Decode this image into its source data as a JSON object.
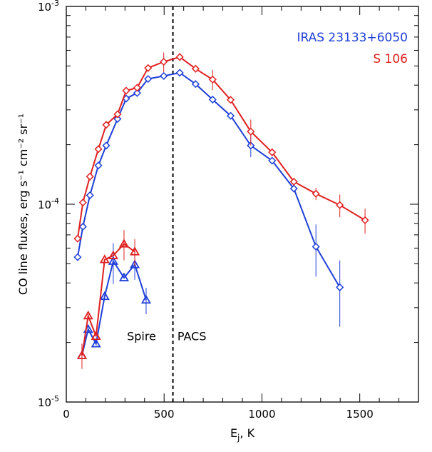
{
  "chart_data": {
    "type": "line",
    "xlabel": "E",
    "xlabel_sub": "j",
    "xlabel_unit": ", K",
    "ylabel": "CO line fluxes, erg s⁻¹ cm⁻² sr⁻¹",
    "xlim": [
      0,
      1800
    ],
    "ylim": [
      1e-05,
      0.001
    ],
    "yscale": "log",
    "x_ticks": [
      0,
      500,
      1000,
      1500
    ],
    "x_tick_labels": [
      "0",
      "500",
      "1000",
      "1500"
    ],
    "y_ticks": [
      {
        "value": 0.001,
        "base": "10",
        "exp": "-3"
      },
      {
        "value": 0.0001,
        "base": "10",
        "exp": "-4"
      },
      {
        "value": 1e-05,
        "base": "10",
        "exp": "-5"
      }
    ],
    "legend_position": "top-right",
    "divider_x": 545,
    "annotations": [
      {
        "text": "Spire",
        "x": 310,
        "y": 2.05e-05
      },
      {
        "text": "PACS",
        "x": 568,
        "y": 2.05e-05
      }
    ],
    "series": [
      {
        "name": "IRAS 23133+6050",
        "color": "#1f3fd8",
        "marker": "diamond",
        "x": [
          58,
          85,
          121,
          164,
          204,
          262,
          306,
          362,
          418,
          498,
          580,
          661,
          748,
          840,
          943,
          1052,
          1163,
          1276,
          1398
        ],
        "y": [
          5.4e-05,
          7.7e-05,
          0.000111,
          0.000157,
          0.000198,
          0.00027,
          0.000342,
          0.000365,
          0.00043,
          0.000445,
          0.000462,
          0.000405,
          0.000338,
          0.00028,
          0.000198,
          0.000166,
          0.00012,
          6.1e-05,
          3.8e-05
        ],
        "err": [
          0,
          0,
          0,
          0,
          0,
          0,
          0,
          0,
          0,
          0,
          0,
          0,
          0,
          0,
          2.5e-05,
          0,
          0,
          1.8e-05,
          1.4e-05
        ]
      },
      {
        "name": "S 106",
        "color": "#e02020",
        "marker": "diamond",
        "x": [
          58,
          85,
          121,
          164,
          204,
          262,
          306,
          362,
          418,
          498,
          580,
          661,
          748,
          840,
          943,
          1052,
          1163,
          1276,
          1398,
          1527
        ],
        "y": [
          6.7e-05,
          0.000102,
          0.000138,
          0.00019,
          0.000252,
          0.000285,
          0.000375,
          0.000388,
          0.000488,
          0.000525,
          0.000555,
          0.000484,
          0.000427,
          0.000337,
          0.000233,
          0.000183,
          0.00013,
          0.000113,
          9.9e-05,
          8.3e-05
        ],
        "err": [
          0,
          0,
          0,
          0,
          0,
          0,
          0,
          0,
          0,
          6e-05,
          0,
          0,
          5e-05,
          0,
          3.5e-05,
          0,
          0,
          8e-06,
          1.3e-05,
          1.2e-05
        ]
      },
      {
        "name": "",
        "color": "#1f3fd8",
        "marker": "triangle",
        "x": [
          80,
          112,
          152,
          196,
          240,
          295,
          350,
          408
        ],
        "y": [
          1.72e-05,
          2.33e-05,
          1.97e-05,
          3.42e-05,
          5.15e-05,
          4.25e-05,
          4.95e-05,
          3.28e-05
        ],
        "err": [
          0,
          0,
          0,
          0,
          1.2e-05,
          0,
          8e-06,
          5e-06
        ]
      },
      {
        "name": "",
        "color": "#e02020",
        "marker": "triangle",
        "x": [
          80,
          112,
          152,
          196,
          240,
          295,
          350
        ],
        "y": [
          1.72e-05,
          2.73e-05,
          2.15e-05,
          5.25e-05,
          5.5e-05,
          6.3e-05,
          5.75e-05
        ],
        "err": [
          2.5e-06,
          0,
          0,
          0,
          0,
          1.1e-05,
          9e-06
        ]
      }
    ]
  }
}
